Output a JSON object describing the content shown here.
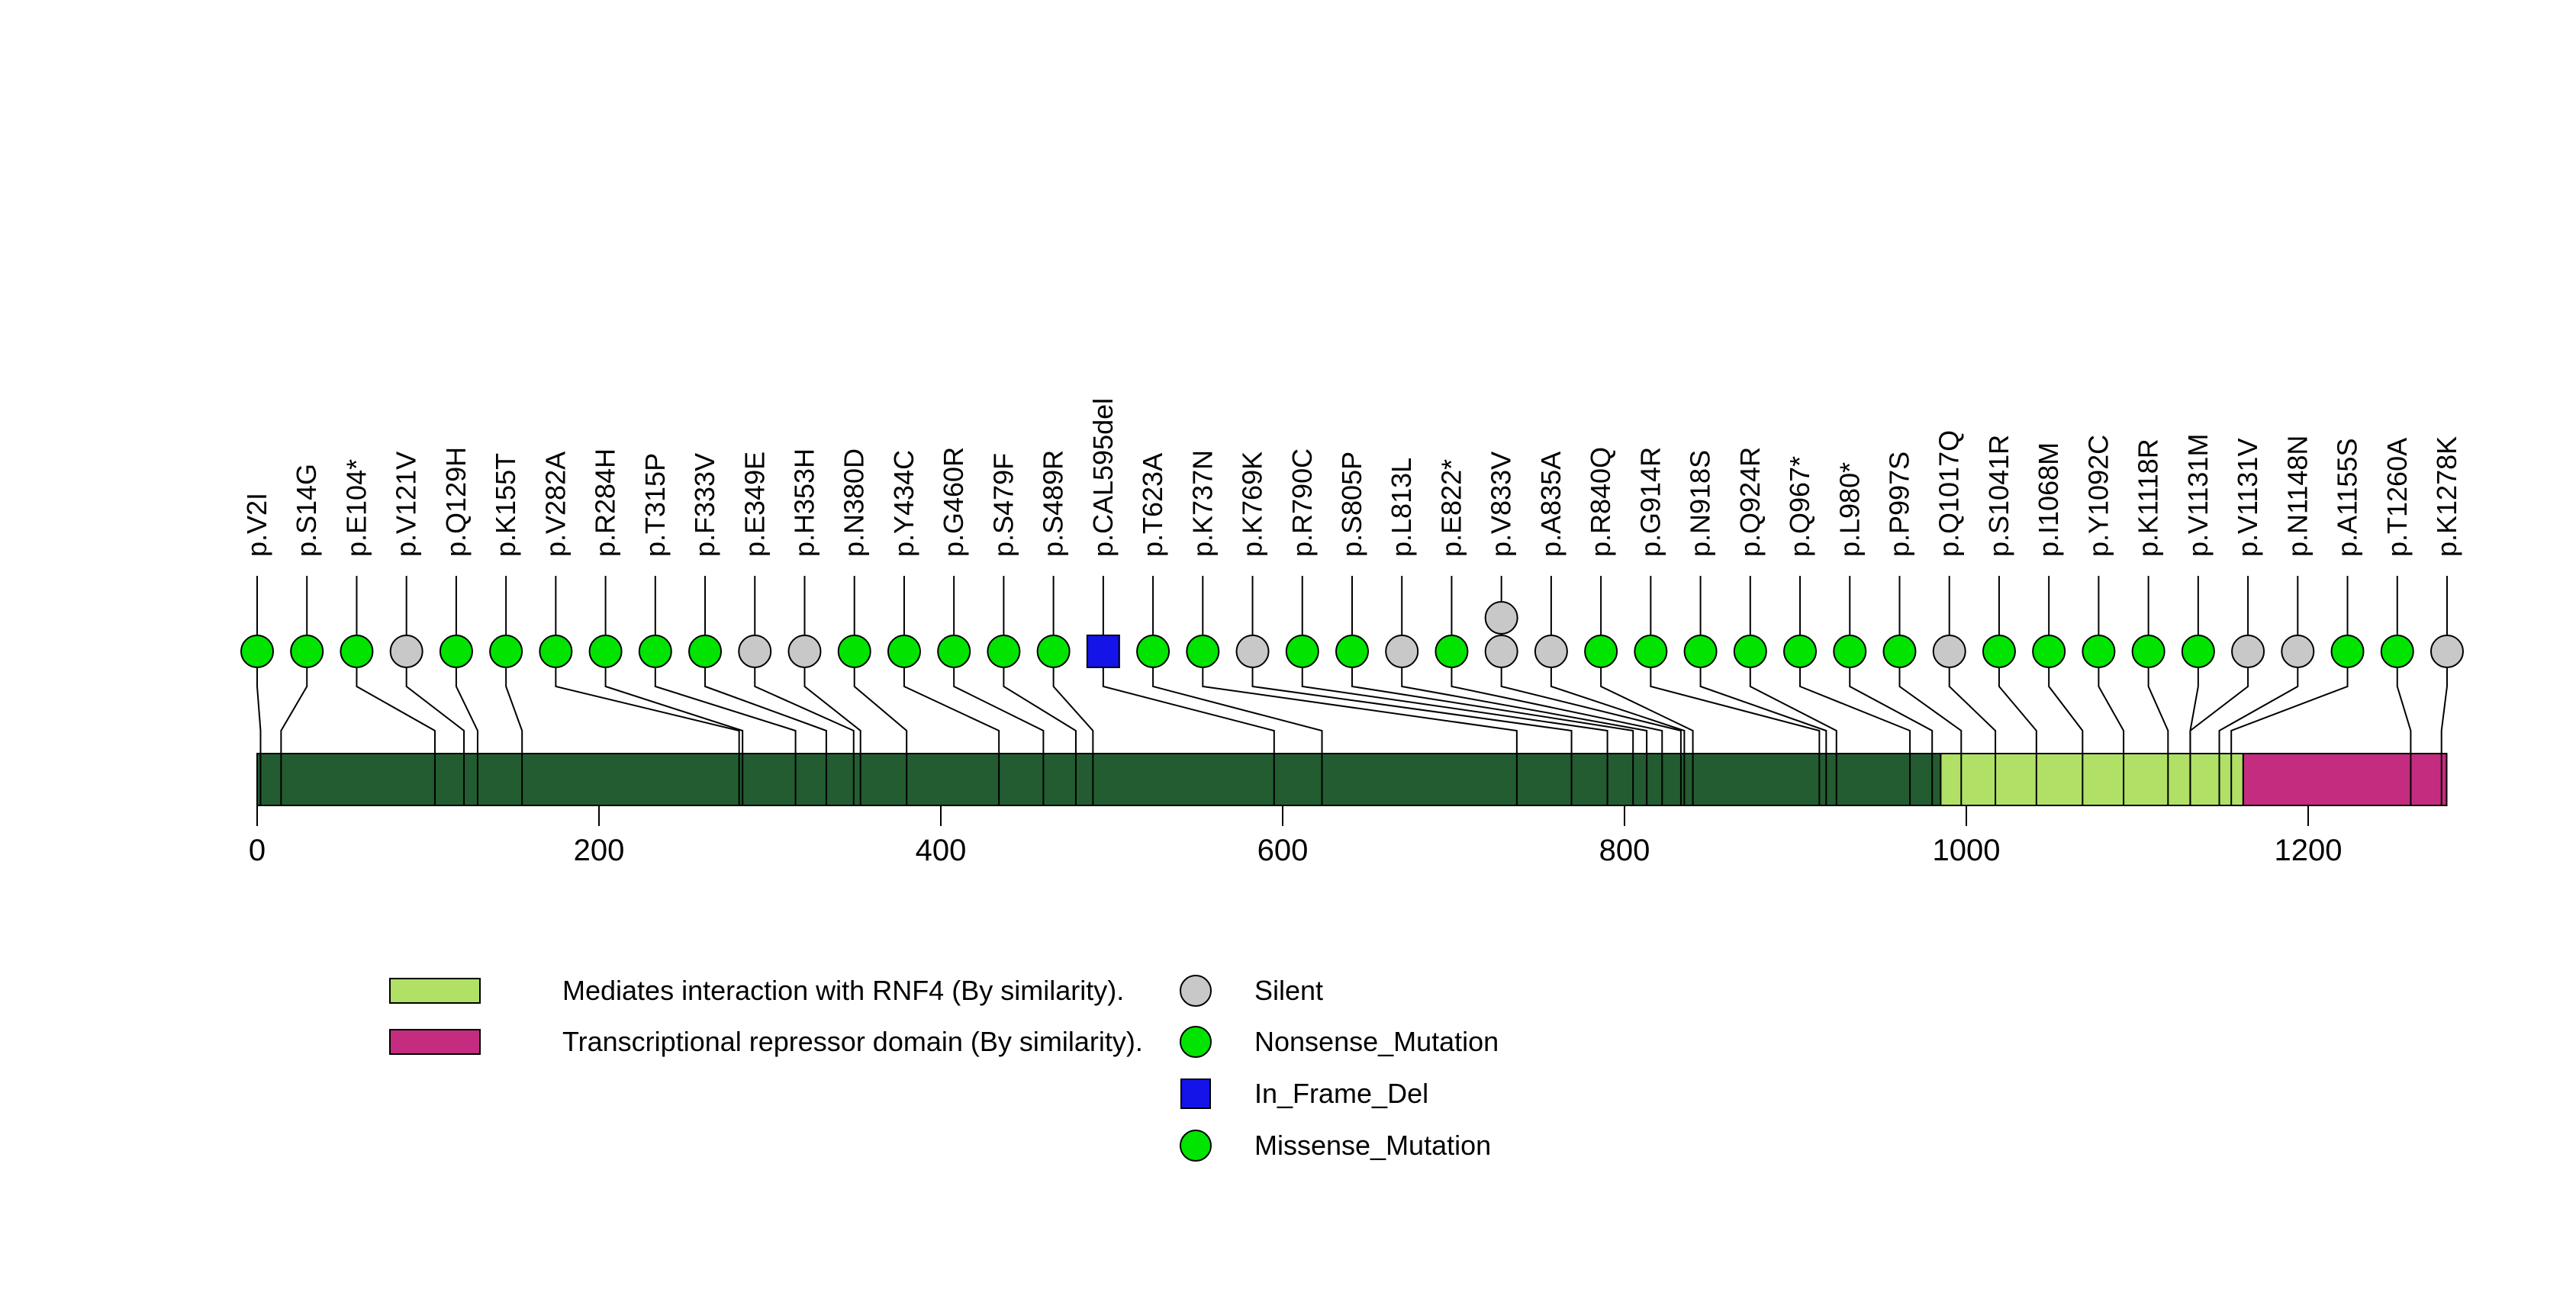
{
  "chart_data": {
    "type": "lollipop",
    "description": "Protein mutation lollipop plot with amino-acid backbone, domain annotations and mutation-type legend",
    "xlim": [
      0,
      1281
    ],
    "protein_length_aa": 1281,
    "grid": false,
    "axis": {
      "ticks": [
        0,
        200,
        400,
        600,
        800,
        1000,
        1200
      ],
      "tick_labels": [
        "0",
        "200",
        "400",
        "600",
        "800",
        "1000",
        "1200"
      ]
    },
    "backbone_color": "#235C30",
    "domains": [
      {
        "label": "Mediates interaction with RNF4 (By similarity).",
        "start_aa": 985,
        "end_aa": 1162,
        "color": "#B0E066"
      },
      {
        "label": "Transcriptional repressor domain (By similarity).",
        "start_aa": 1162,
        "end_aa": 1281,
        "color": "#C42C80"
      }
    ],
    "legend": [
      {
        "label": "Silent",
        "color": "#C8C8C8",
        "shape": "circle"
      },
      {
        "label": "Nonsense_Mutation",
        "color": "#00E400",
        "shape": "circle"
      },
      {
        "label": "In_Frame_Del",
        "color": "#1414E8",
        "shape": "square"
      },
      {
        "label": "Missense_Mutation",
        "color": "#00E400",
        "shape": "circle"
      }
    ],
    "type_colors": {
      "Silent": "#C8C8C8",
      "Nonsense_Mutation": "#00E400",
      "In_Frame_Del": "#1414E8",
      "Missense_Mutation": "#00E400"
    },
    "mutations": [
      {
        "label": "p.V2I",
        "aa": 2,
        "type": "Missense_Mutation",
        "count": 1
      },
      {
        "label": "p.S14G",
        "aa": 14,
        "type": "Missense_Mutation",
        "count": 1
      },
      {
        "label": "p.E104*",
        "aa": 104,
        "type": "Nonsense_Mutation",
        "count": 1
      },
      {
        "label": "p.V121V",
        "aa": 121,
        "type": "Silent",
        "count": 1
      },
      {
        "label": "p.Q129H",
        "aa": 129,
        "type": "Missense_Mutation",
        "count": 1
      },
      {
        "label": "p.K155T",
        "aa": 155,
        "type": "Missense_Mutation",
        "count": 1
      },
      {
        "label": "p.V282A",
        "aa": 282,
        "type": "Missense_Mutation",
        "count": 1
      },
      {
        "label": "p.R284H",
        "aa": 284,
        "type": "Missense_Mutation",
        "count": 1
      },
      {
        "label": "p.T315P",
        "aa": 315,
        "type": "Missense_Mutation",
        "count": 1
      },
      {
        "label": "p.F333V",
        "aa": 333,
        "type": "Missense_Mutation",
        "count": 1
      },
      {
        "label": "p.E349E",
        "aa": 349,
        "type": "Silent",
        "count": 1
      },
      {
        "label": "p.H353H",
        "aa": 353,
        "type": "Silent",
        "count": 1
      },
      {
        "label": "p.N380D",
        "aa": 380,
        "type": "Missense_Mutation",
        "count": 1
      },
      {
        "label": "p.Y434C",
        "aa": 434,
        "type": "Missense_Mutation",
        "count": 1
      },
      {
        "label": "p.G460R",
        "aa": 460,
        "type": "Missense_Mutation",
        "count": 1
      },
      {
        "label": "p.S479F",
        "aa": 479,
        "type": "Missense_Mutation",
        "count": 1
      },
      {
        "label": "p.S489R",
        "aa": 489,
        "type": "Missense_Mutation",
        "count": 1
      },
      {
        "label": "p.CAL595del",
        "aa": 595,
        "type": "In_Frame_Del",
        "count": 1
      },
      {
        "label": "p.T623A",
        "aa": 623,
        "type": "Missense_Mutation",
        "count": 1
      },
      {
        "label": "p.K737N",
        "aa": 737,
        "type": "Missense_Mutation",
        "count": 1
      },
      {
        "label": "p.K769K",
        "aa": 769,
        "type": "Silent",
        "count": 1
      },
      {
        "label": "p.R790C",
        "aa": 790,
        "type": "Missense_Mutation",
        "count": 1
      },
      {
        "label": "p.S805P",
        "aa": 805,
        "type": "Missense_Mutation",
        "count": 1
      },
      {
        "label": "p.L813L",
        "aa": 813,
        "type": "Silent",
        "count": 1
      },
      {
        "label": "p.E822*",
        "aa": 822,
        "type": "Nonsense_Mutation",
        "count": 1
      },
      {
        "label": "p.V833V",
        "aa": 833,
        "type": "Silent",
        "count": 2
      },
      {
        "label": "p.A835A",
        "aa": 835,
        "type": "Silent",
        "count": 1
      },
      {
        "label": "p.R840Q",
        "aa": 840,
        "type": "Missense_Mutation",
        "count": 1
      },
      {
        "label": "p.G914R",
        "aa": 914,
        "type": "Missense_Mutation",
        "count": 1
      },
      {
        "label": "p.N918S",
        "aa": 918,
        "type": "Missense_Mutation",
        "count": 1
      },
      {
        "label": "p.Q924R",
        "aa": 924,
        "type": "Missense_Mutation",
        "count": 1
      },
      {
        "label": "p.Q967*",
        "aa": 967,
        "type": "Nonsense_Mutation",
        "count": 1
      },
      {
        "label": "p.L980*",
        "aa": 980,
        "type": "Nonsense_Mutation",
        "count": 1
      },
      {
        "label": "p.P997S",
        "aa": 997,
        "type": "Missense_Mutation",
        "count": 1
      },
      {
        "label": "p.Q1017Q",
        "aa": 1017,
        "type": "Silent",
        "count": 1
      },
      {
        "label": "p.S1041R",
        "aa": 1041,
        "type": "Missense_Mutation",
        "count": 1
      },
      {
        "label": "p.I1068M",
        "aa": 1068,
        "type": "Missense_Mutation",
        "count": 1
      },
      {
        "label": "p.Y1092C",
        "aa": 1092,
        "type": "Missense_Mutation",
        "count": 1
      },
      {
        "label": "p.K1118R",
        "aa": 1118,
        "type": "Missense_Mutation",
        "count": 1
      },
      {
        "label": "p.V1131M",
        "aa": 1131,
        "type": "Missense_Mutation",
        "count": 1
      },
      {
        "label": "p.V1131V",
        "aa": 1131,
        "type": "Silent",
        "count": 1
      },
      {
        "label": "p.N1148N",
        "aa": 1148,
        "type": "Silent",
        "count": 1
      },
      {
        "label": "p.A1155S",
        "aa": 1155,
        "type": "Missense_Mutation",
        "count": 1
      },
      {
        "label": "p.T1260A",
        "aa": 1260,
        "type": "Missense_Mutation",
        "count": 1
      },
      {
        "label": "p.K1278K",
        "aa": 1278,
        "type": "Silent",
        "count": 1
      }
    ]
  }
}
